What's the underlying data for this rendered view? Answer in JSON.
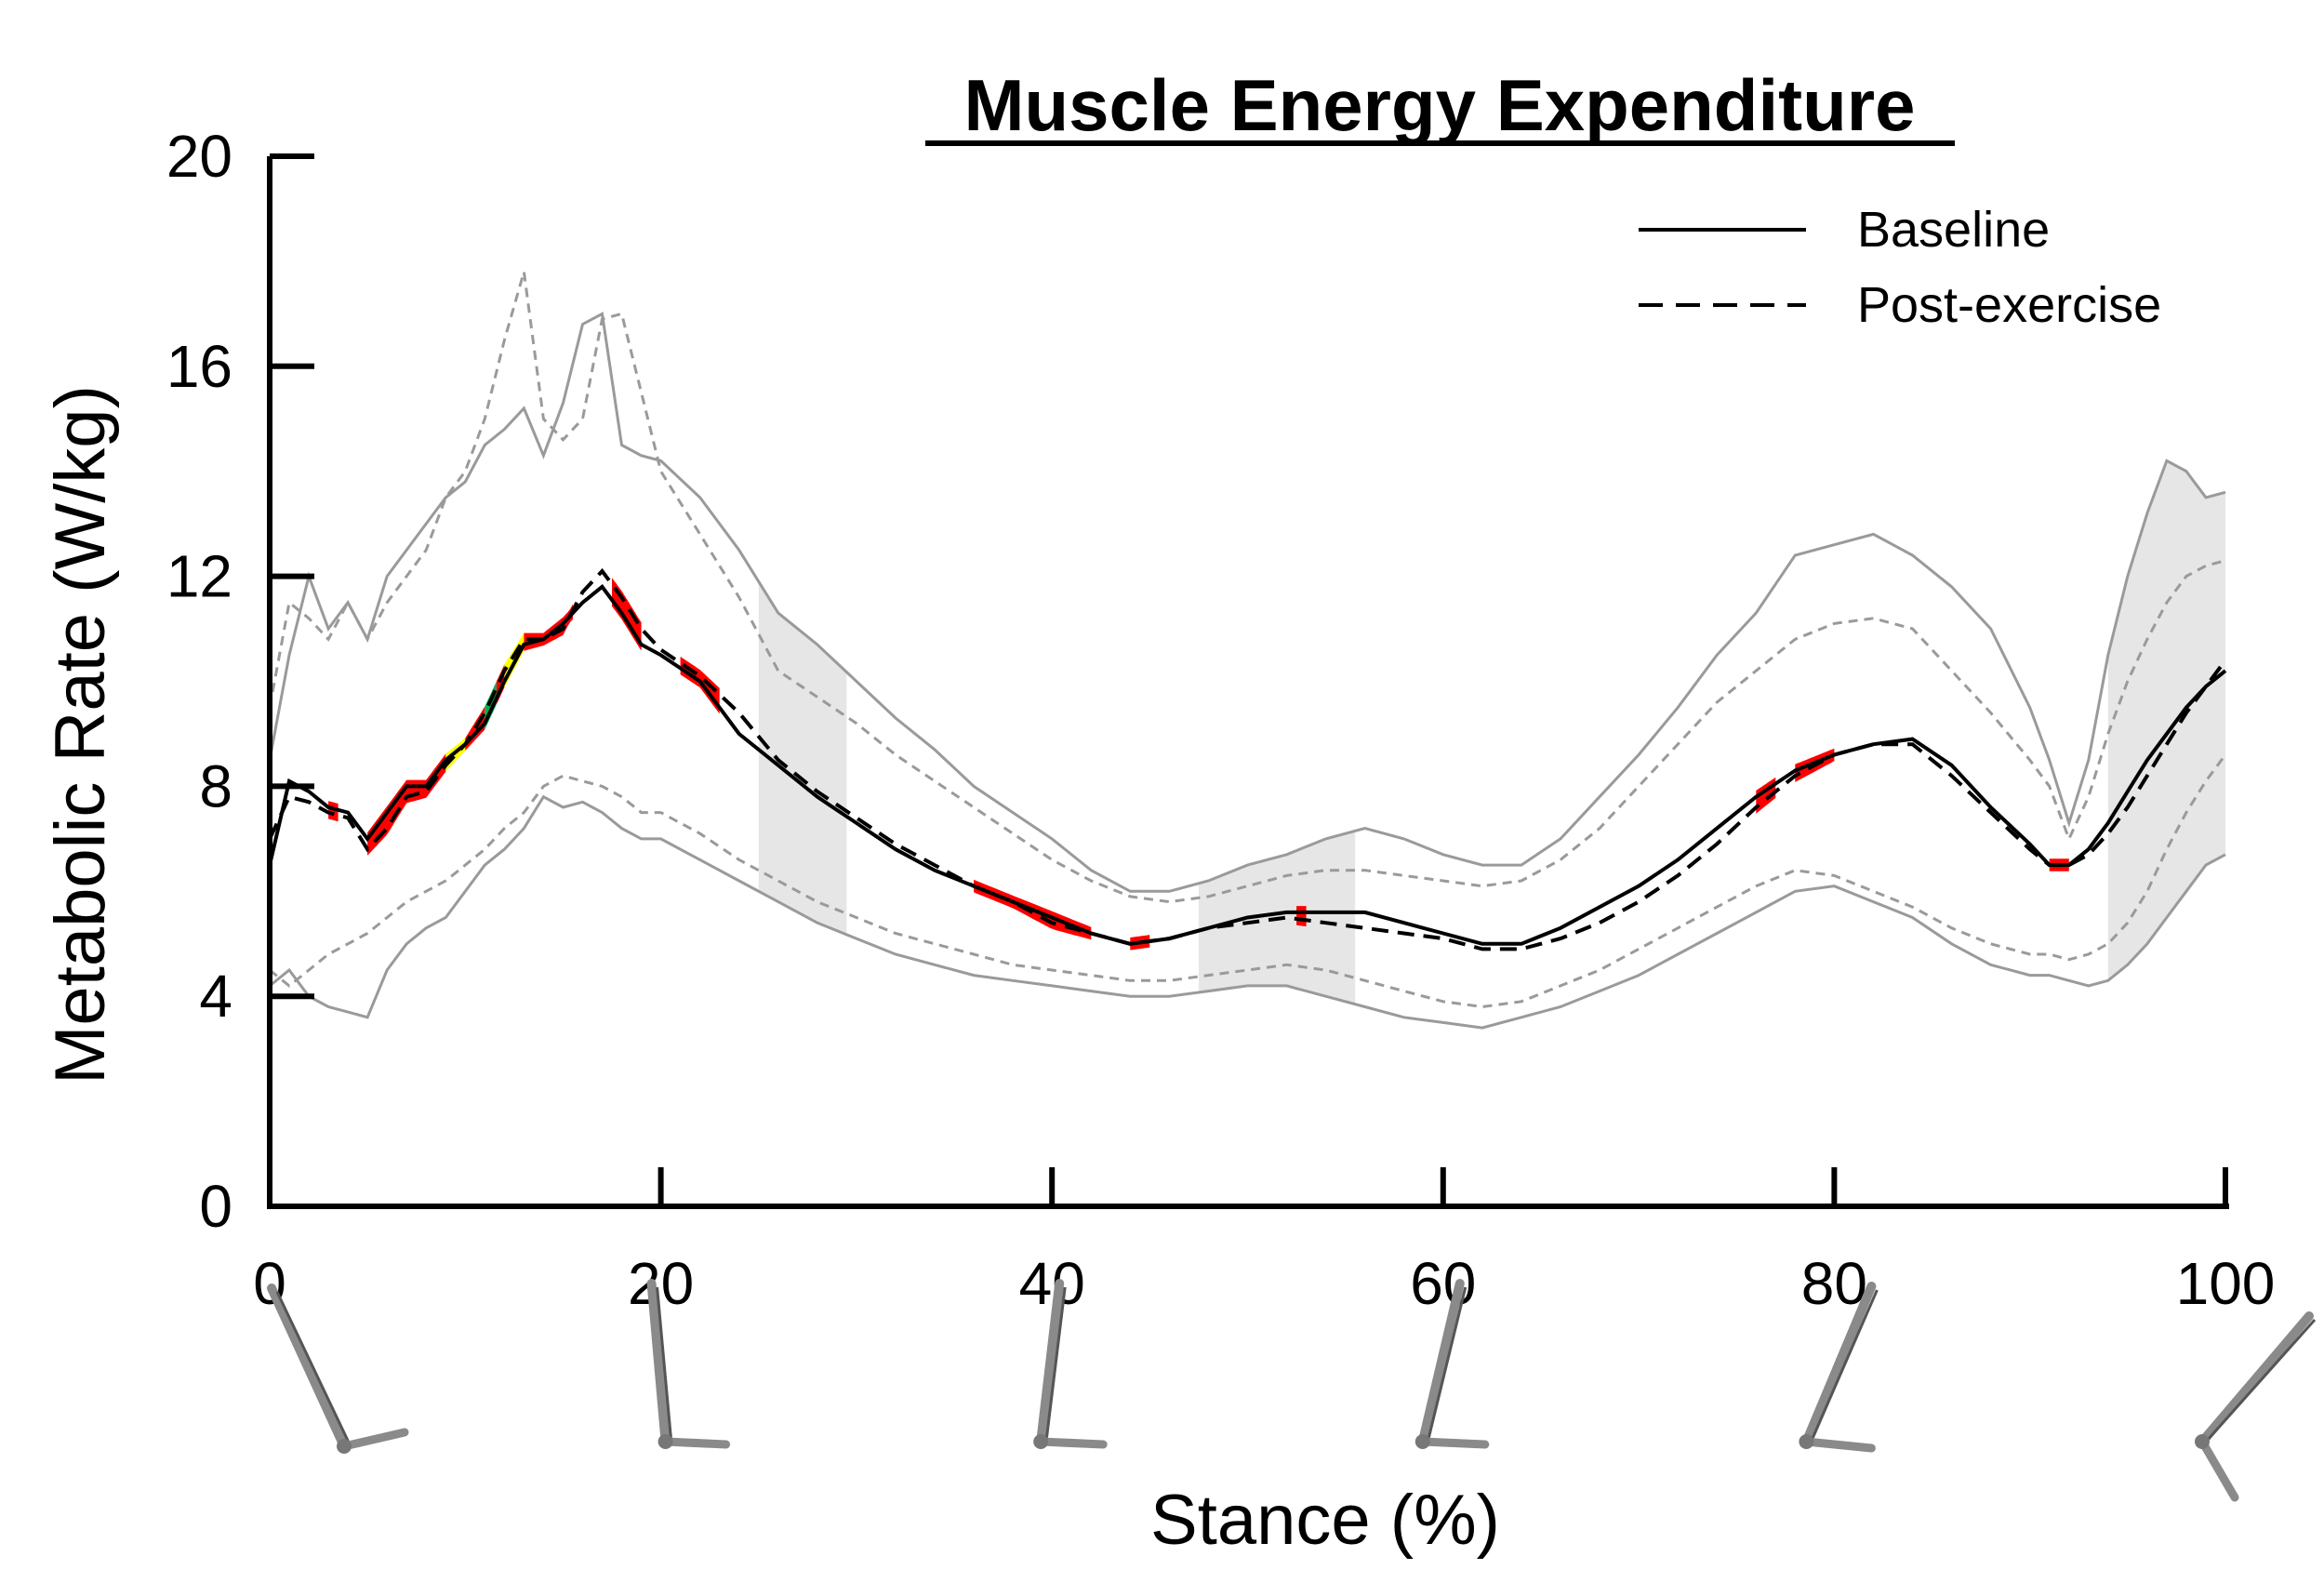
{
  "chart_data": {
    "type": "line",
    "title": "Muscle Energy Expenditure",
    "xlabel": "Stance (%)",
    "ylabel": "Metabolic Rate (W/kg)",
    "xlim": [
      0,
      100
    ],
    "ylim": [
      0,
      20
    ],
    "xticks": [
      0,
      20,
      40,
      60,
      80,
      100
    ],
    "yticks": [
      0,
      4,
      8,
      12,
      16,
      20
    ],
    "grid": false,
    "legend_position": "top-right",
    "colors": {
      "mean": "#000000",
      "band": "#9a9a9a",
      "band_fill": "#e6e6e6",
      "sig_red": "#ff0000",
      "sig_yellow": "#ffff00",
      "sig_green": "#00b050"
    },
    "x": [
      0,
      1,
      2,
      3,
      4,
      5,
      6,
      7,
      8,
      9,
      10,
      11,
      12,
      13,
      14,
      15,
      16,
      17,
      18,
      19,
      20,
      22,
      24,
      26,
      28,
      30,
      32,
      34,
      36,
      38,
      40,
      42,
      44,
      46,
      48,
      50,
      52,
      54,
      56,
      58,
      60,
      62,
      64,
      66,
      68,
      70,
      72,
      74,
      76,
      78,
      80,
      82,
      84,
      86,
      88,
      90,
      91,
      92,
      93,
      94,
      95,
      96,
      97,
      98,
      99,
      100
    ],
    "series": [
      {
        "name": "Baseline",
        "style": "solid",
        "mean": [
          6.5,
          8.1,
          7.9,
          7.6,
          7.5,
          7.0,
          7.5,
          8.0,
          8.0,
          8.5,
          8.8,
          9.2,
          10.0,
          10.7,
          10.8,
          11.1,
          11.5,
          11.8,
          11.3,
          10.7,
          10.5,
          10.0,
          9.0,
          8.4,
          7.8,
          7.3,
          6.8,
          6.4,
          6.1,
          5.8,
          5.5,
          5.2,
          5.0,
          5.1,
          5.3,
          5.5,
          5.6,
          5.6,
          5.6,
          5.4,
          5.2,
          5.0,
          5.0,
          5.3,
          5.7,
          6.1,
          6.6,
          7.2,
          7.8,
          8.3,
          8.6,
          8.8,
          8.9,
          8.4,
          7.6,
          6.9,
          6.5,
          6.5,
          6.8,
          7.3,
          7.9,
          8.5,
          9.0,
          9.5,
          9.9,
          10.2
        ],
        "upper": [
          8.5,
          10.5,
          12.0,
          11.0,
          11.5,
          10.8,
          12.0,
          12.5,
          13.0,
          13.5,
          13.8,
          14.5,
          14.8,
          15.2,
          14.3,
          15.3,
          16.8,
          17.0,
          14.5,
          14.3,
          14.2,
          13.5,
          12.5,
          11.3,
          10.7,
          10.0,
          9.3,
          8.7,
          8.0,
          7.5,
          7.0,
          6.4,
          6.0,
          6.0,
          6.2,
          6.5,
          6.7,
          7.0,
          7.2,
          7.0,
          6.7,
          6.5,
          6.5,
          7.0,
          7.8,
          8.6,
          9.5,
          10.5,
          11.3,
          12.4,
          12.6,
          12.8,
          12.4,
          11.8,
          11.0,
          9.5,
          8.5,
          7.3,
          8.5,
          10.5,
          12.0,
          13.2,
          14.2,
          14.0,
          13.5,
          13.6
        ],
        "lower": [
          4.2,
          4.5,
          4.0,
          3.8,
          3.7,
          3.6,
          4.5,
          5.0,
          5.3,
          5.5,
          6.0,
          6.5,
          6.8,
          7.2,
          7.8,
          7.6,
          7.7,
          7.5,
          7.2,
          7.0,
          7.0,
          6.6,
          6.2,
          5.8,
          5.4,
          5.1,
          4.8,
          4.6,
          4.4,
          4.3,
          4.2,
          4.1,
          4.0,
          4.0,
          4.1,
          4.2,
          4.2,
          4.0,
          3.8,
          3.6,
          3.5,
          3.4,
          3.6,
          3.8,
          4.1,
          4.4,
          4.8,
          5.2,
          5.6,
          6.0,
          6.1,
          5.8,
          5.5,
          5.0,
          4.6,
          4.4,
          4.4,
          4.3,
          4.2,
          4.3,
          4.6,
          5.0,
          5.5,
          6.0,
          6.5,
          6.7
        ]
      },
      {
        "name": "Post-exercise",
        "style": "dashed",
        "mean": [
          7.0,
          7.8,
          7.7,
          7.5,
          7.4,
          6.8,
          7.2,
          7.8,
          7.9,
          8.4,
          8.8,
          9.4,
          10.2,
          10.8,
          10.8,
          11.0,
          11.7,
          12.1,
          11.6,
          11.0,
          10.6,
          10.1,
          9.4,
          8.5,
          7.9,
          7.4,
          6.9,
          6.5,
          6.1,
          5.8,
          5.4,
          5.2,
          5.0,
          5.1,
          5.3,
          5.4,
          5.5,
          5.4,
          5.3,
          5.2,
          5.1,
          4.9,
          4.9,
          5.1,
          5.4,
          5.8,
          6.3,
          6.9,
          7.6,
          8.2,
          8.6,
          8.8,
          8.8,
          8.2,
          7.5,
          6.8,
          6.5,
          6.5,
          6.7,
          7.1,
          7.6,
          8.2,
          8.8,
          9.4,
          9.9,
          10.4
        ],
        "upper": [
          9.5,
          11.5,
          11.2,
          10.8,
          11.5,
          10.8,
          11.5,
          12.0,
          12.5,
          13.5,
          14.0,
          15.0,
          16.5,
          17.8,
          15.0,
          14.6,
          15.0,
          16.9,
          17.0,
          15.5,
          14.0,
          12.8,
          11.6,
          10.2,
          9.7,
          9.2,
          8.6,
          8.1,
          7.6,
          7.1,
          6.6,
          6.2,
          5.9,
          5.8,
          5.9,
          6.1,
          6.3,
          6.4,
          6.4,
          6.3,
          6.2,
          6.1,
          6.2,
          6.6,
          7.2,
          8.0,
          8.8,
          9.6,
          10.2,
          10.8,
          11.1,
          11.2,
          11.0,
          10.2,
          9.4,
          8.5,
          8.0,
          7.0,
          7.8,
          9.0,
          10.0,
          10.8,
          11.5,
          12.0,
          12.2,
          12.3
        ],
        "lower": [
          4.5,
          4.2,
          4.5,
          4.8,
          5.0,
          5.2,
          5.5,
          5.8,
          6.0,
          6.2,
          6.5,
          6.8,
          7.2,
          7.5,
          8.0,
          8.2,
          8.1,
          8.0,
          7.8,
          7.5,
          7.5,
          7.1,
          6.6,
          6.2,
          5.8,
          5.5,
          5.2,
          5.0,
          4.8,
          4.6,
          4.5,
          4.4,
          4.3,
          4.3,
          4.4,
          4.5,
          4.6,
          4.5,
          4.3,
          4.1,
          3.9,
          3.8,
          3.9,
          4.2,
          4.5,
          4.9,
          5.3,
          5.7,
          6.1,
          6.4,
          6.3,
          6.0,
          5.7,
          5.3,
          5.0,
          4.8,
          4.8,
          4.7,
          4.8,
          5.0,
          5.4,
          6.0,
          6.8,
          7.5,
          8.1,
          8.6
        ]
      }
    ],
    "shaded_regions": [
      [
        25,
        29.5
      ],
      [
        47.5,
        55.5
      ],
      [
        94,
        100
      ]
    ],
    "significance_regions": [
      {
        "from": 3,
        "to": 3.5,
        "color": "red"
      },
      {
        "from": 5,
        "to": 9,
        "color": "red"
      },
      {
        "from": 9,
        "to": 10,
        "color": "yellow"
      },
      {
        "from": 10,
        "to": 11,
        "color": "red"
      },
      {
        "from": 11,
        "to": 11.6,
        "color": "green"
      },
      {
        "from": 11.6,
        "to": 12,
        "color": "red"
      },
      {
        "from": 12,
        "to": 13,
        "color": "yellow"
      },
      {
        "from": 13,
        "to": 15.5,
        "color": "red"
      },
      {
        "from": 17.5,
        "to": 19,
        "color": "red"
      },
      {
        "from": 21,
        "to": 23,
        "color": "red"
      },
      {
        "from": 36,
        "to": 42,
        "color": "red"
      },
      {
        "from": 44,
        "to": 45,
        "color": "red"
      },
      {
        "from": 52.5,
        "to": 53,
        "color": "red"
      },
      {
        "from": 76,
        "to": 77,
        "color": "red"
      },
      {
        "from": 78,
        "to": 80,
        "color": "red"
      },
      {
        "from": 91,
        "to": 92,
        "color": "red"
      }
    ],
    "stance_icons": [
      0,
      20,
      40,
      60,
      80,
      100
    ]
  }
}
